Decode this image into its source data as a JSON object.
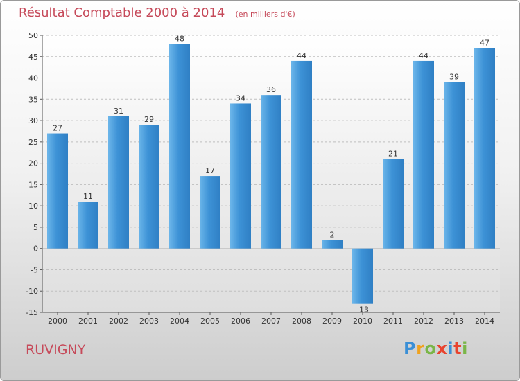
{
  "title": "Résultat Comptable 2000 à 2014",
  "subtitle": "(en milliers d'€)",
  "commune": "RUVIGNY",
  "logo": {
    "letters": [
      "P",
      "r",
      "o",
      "x",
      "i",
      "t",
      "i"
    ],
    "colors": [
      "#3a8fd6",
      "#f0a21e",
      "#7ab648",
      "#e8432e",
      "#3a8fd6",
      "#e8432e",
      "#7ab648"
    ]
  },
  "colors": {
    "bar": "#3d92d6",
    "bar_light": "#6cb6ea",
    "bar_dark": "#2f7fc4",
    "title": "#c64a5a"
  },
  "chart_data": {
    "type": "bar",
    "title": "Résultat Comptable 2000 à 2014",
    "ylabel": "en milliers d'€",
    "categories": [
      "2000",
      "2001",
      "2002",
      "2003",
      "2004",
      "2005",
      "2006",
      "2007",
      "2008",
      "2009",
      "2010",
      "2011",
      "2012",
      "2013",
      "2014"
    ],
    "values": [
      27,
      11,
      31,
      29,
      48,
      17,
      34,
      36,
      44,
      2,
      -13,
      21,
      44,
      39,
      47
    ],
    "ylim": [
      -15,
      50
    ],
    "yticks": [
      -15,
      -10,
      -5,
      0,
      5,
      10,
      15,
      20,
      25,
      30,
      35,
      40,
      45,
      50
    ],
    "grid": true
  }
}
